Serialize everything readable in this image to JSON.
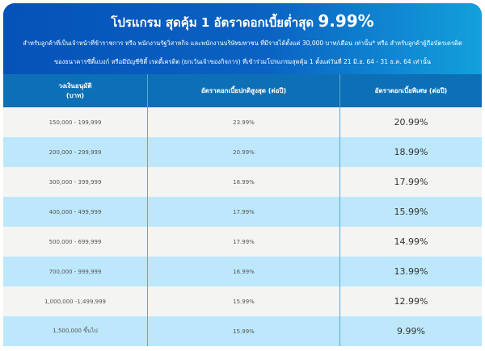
{
  "banner": {
    "title_text": "โปรแกรม สุดคุ้ม 1 อัตราดอกเบี้ยต่ำสุด",
    "title_rate": "9.99%",
    "line1": "สำหรับลูกค้าที่เป็นเจ้าหน้าที่ข้าราชการ หรือ พนักงานรัฐวิสาหกิจ และพนักงานบริษัทมหาชน ที่มีรายได้ตั้งแต่ 30,000 บาท/เดือน เท่านั้น* หรือ สำหรับลูกค้าผู้ถือบัตรเครดิต",
    "line2": "ของธนาคารซีตี้แบงก์ หรือมีบัญชีซิตี้ เรดดี้เครดิต (ยกเว้นเจ้าของกิจการ) ที่เข้าร่วมโปรแกรมสุดคุ้ม 1 ตั้งแต่วันที่ 21 มิ.ย. 64 - 31 ธ.ค. 64 เท่านั้น"
  },
  "table": {
    "headers": {
      "col1_line1": "วงเงินอนุมัติ",
      "col1_line2": "(บาท)",
      "col2": "อัตราดอกเบี้ยปกติสูงสุด (ต่อปี)",
      "col3": "อัตราดอกเบี้ยพิเศษ (ต่อปี)"
    },
    "rows": [
      {
        "amount": "150,000 - 199,999",
        "normal": "23.99%",
        "special": "20.99%"
      },
      {
        "amount": "200,000 - 299,999",
        "normal": "20.99%",
        "special": "18.99%"
      },
      {
        "amount": "300,000 - 399,999",
        "normal": "18.99%",
        "special": "17.99%"
      },
      {
        "amount": "400,000 - 499,999",
        "normal": "17.99%",
        "special": "15.99%"
      },
      {
        "amount": "500,000 - 699,999",
        "normal": "17.99%",
        "special": "14.99%"
      },
      {
        "amount": "700,000 - 999,999",
        "normal": "16.99%",
        "special": "13.99%"
      },
      {
        "amount": "1,000,000 -1,499,999",
        "normal": "15.99%",
        "special": "12.99%"
      },
      {
        "amount": "1,500,000 ขึ้นไป",
        "normal": "15.99%",
        "special": "9.99%"
      }
    ]
  },
  "colors": {
    "banner_left": "#0552b8",
    "banner_right": "#13a0dc",
    "header_bg": "#0d70b7",
    "row_light": "#f4f4f3",
    "row_blue": "#bde8fb"
  }
}
